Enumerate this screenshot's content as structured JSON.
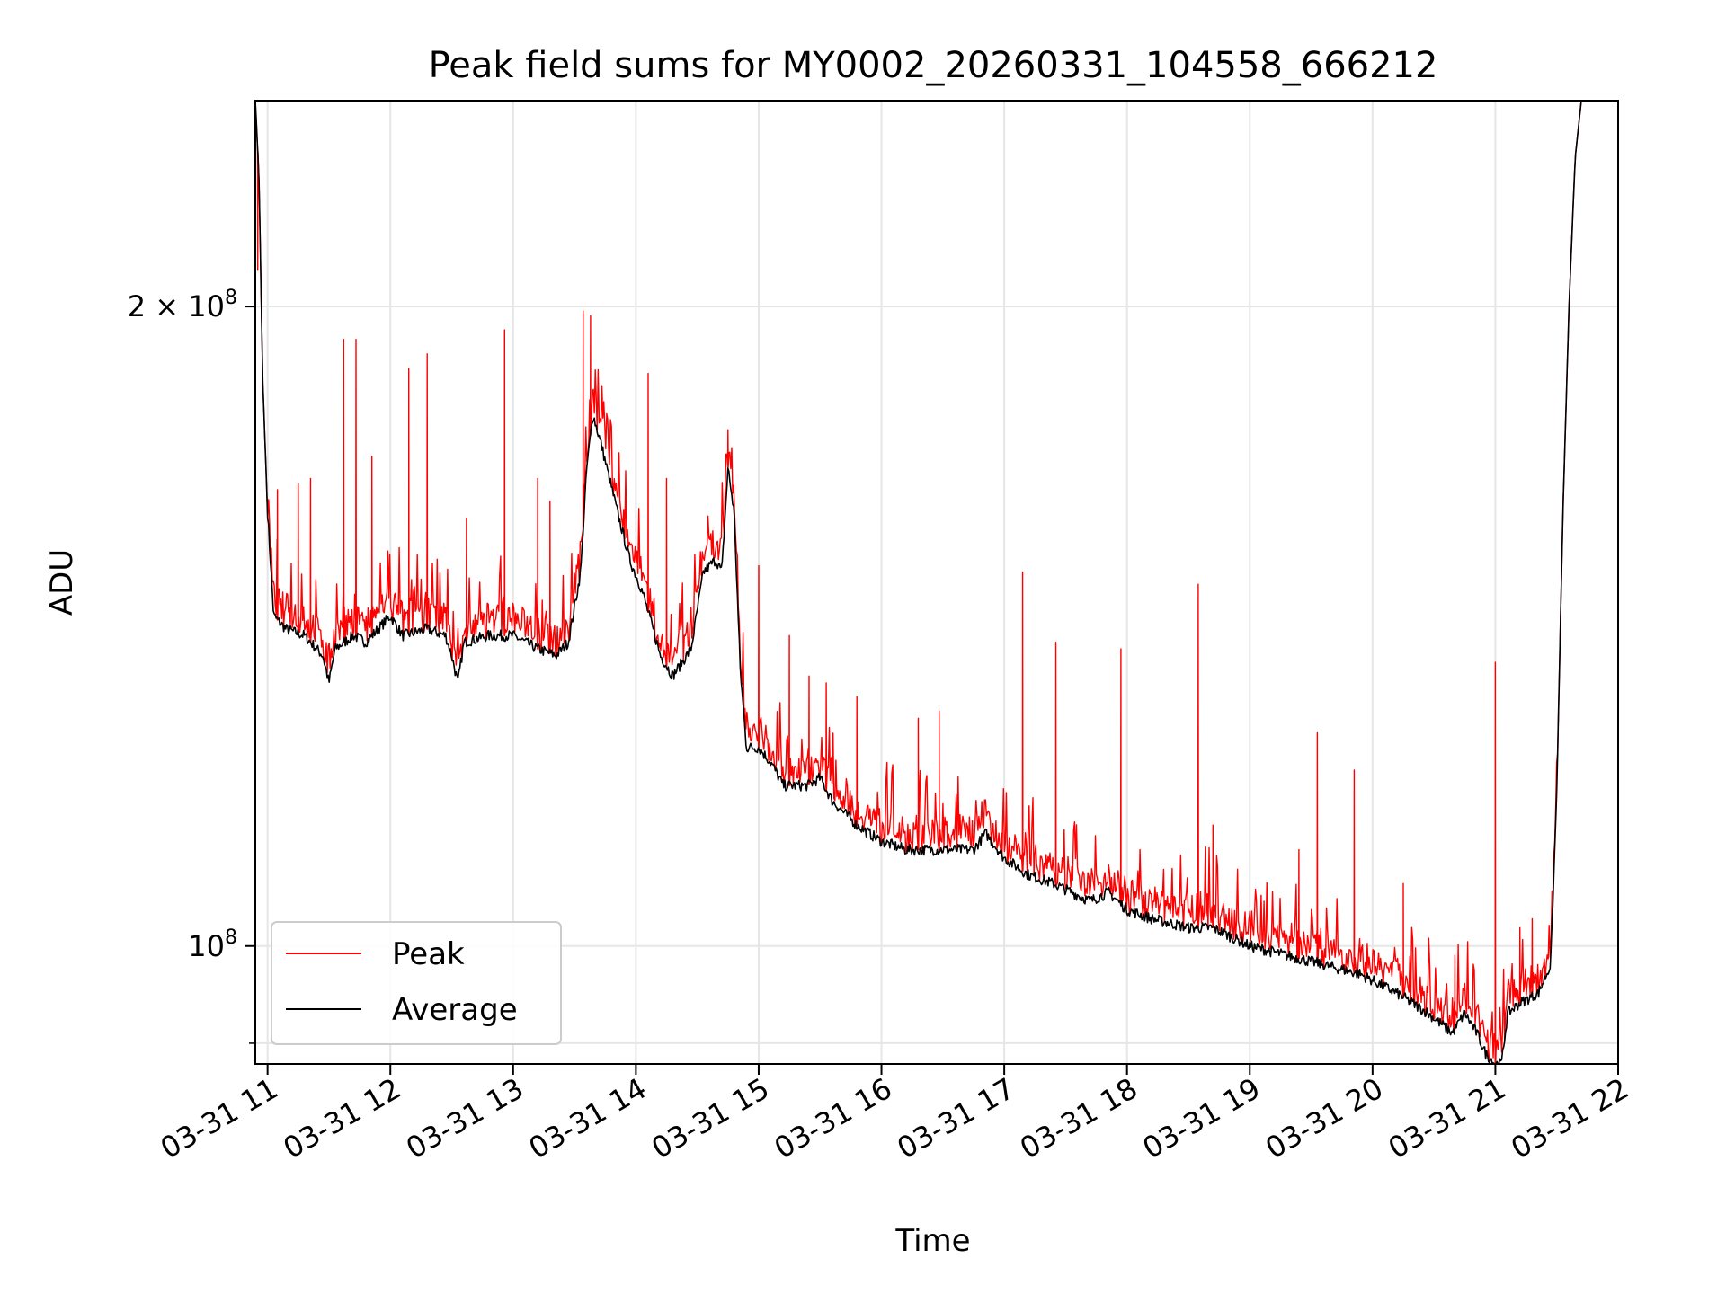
{
  "chart_data": {
    "type": "line",
    "title": "Peak field sums for MY0002_20260331_104558_666212",
    "xlabel": "Time",
    "ylabel": "ADU",
    "yscale": "log",
    "grid": true,
    "legend_position": "lower-left",
    "xlim_hours": [
      10.9,
      22.0
    ],
    "ylim": [
      88000000,
      250000000
    ],
    "x_ticks": [
      {
        "hour": 11,
        "label": "03-31 11"
      },
      {
        "hour": 12,
        "label": "03-31 12"
      },
      {
        "hour": 13,
        "label": "03-31 13"
      },
      {
        "hour": 14,
        "label": "03-31 14"
      },
      {
        "hour": 15,
        "label": "03-31 15"
      },
      {
        "hour": 16,
        "label": "03-31 16"
      },
      {
        "hour": 17,
        "label": "03-31 17"
      },
      {
        "hour": 18,
        "label": "03-31 18"
      },
      {
        "hour": 19,
        "label": "03-31 19"
      },
      {
        "hour": 20,
        "label": "03-31 20"
      },
      {
        "hour": 21,
        "label": "03-31 21"
      },
      {
        "hour": 22,
        "label": "03-31 22"
      }
    ],
    "y_major_ticks": [
      {
        "value": 100000000,
        "base": "10",
        "exp": "8"
      },
      {
        "value": 200000000,
        "base": "2 × 10",
        "exp": "8"
      }
    ],
    "y_minor_ticks": [
      90000000
    ],
    "series": [
      {
        "name": "Peak",
        "color": "#ff0000",
        "description": "baseline plus narrow upward spikes",
        "spikes": [
          {
            "hour": 10.92,
            "value": 208000000
          },
          {
            "hour": 11.08,
            "value": 164000000
          },
          {
            "hour": 11.25,
            "value": 165000000
          },
          {
            "hour": 11.35,
            "value": 166000000
          },
          {
            "hour": 11.62,
            "value": 193000000
          },
          {
            "hour": 11.72,
            "value": 193000000
          },
          {
            "hour": 11.85,
            "value": 170000000
          },
          {
            "hour": 12.15,
            "value": 187000000
          },
          {
            "hour": 12.3,
            "value": 190000000
          },
          {
            "hour": 12.62,
            "value": 159000000
          },
          {
            "hour": 12.93,
            "value": 195000000
          },
          {
            "hour": 13.2,
            "value": 166000000
          },
          {
            "hour": 13.3,
            "value": 162000000
          },
          {
            "hour": 13.57,
            "value": 199000000
          },
          {
            "hour": 13.63,
            "value": 198000000
          },
          {
            "hour": 14.1,
            "value": 186000000
          },
          {
            "hour": 14.25,
            "value": 166000000
          },
          {
            "hour": 14.75,
            "value": 175000000
          },
          {
            "hour": 15.0,
            "value": 151000000
          },
          {
            "hour": 15.25,
            "value": 140000000
          },
          {
            "hour": 15.41,
            "value": 134000000
          },
          {
            "hour": 15.55,
            "value": 133000000
          },
          {
            "hour": 15.8,
            "value": 131000000
          },
          {
            "hour": 16.3,
            "value": 128000000
          },
          {
            "hour": 16.47,
            "value": 129000000
          },
          {
            "hour": 16.98,
            "value": 113000000
          },
          {
            "hour": 17.15,
            "value": 150000000
          },
          {
            "hour": 17.42,
            "value": 139000000
          },
          {
            "hour": 17.95,
            "value": 138000000
          },
          {
            "hour": 18.15,
            "value": 106000000
          },
          {
            "hour": 18.58,
            "value": 148000000
          },
          {
            "hour": 18.7,
            "value": 114000000
          },
          {
            "hour": 19.4,
            "value": 111000000
          },
          {
            "hour": 19.55,
            "value": 126000000
          },
          {
            "hour": 19.85,
            "value": 121000000
          },
          {
            "hour": 20.25,
            "value": 107000000
          },
          {
            "hour": 20.67,
            "value": 99000000
          },
          {
            "hour": 21.0,
            "value": 136000000
          },
          {
            "hour": 21.2,
            "value": 102000000
          },
          {
            "hour": 21.3,
            "value": 103000000
          }
        ]
      },
      {
        "name": "Average",
        "color": "#000000",
        "description": "smooth baseline",
        "points": [
          [
            10.9,
            250000000
          ],
          [
            10.93,
            230000000
          ],
          [
            10.96,
            185000000
          ],
          [
            11.0,
            160000000
          ],
          [
            11.05,
            143000000
          ],
          [
            11.15,
            141000000
          ],
          [
            11.3,
            140000000
          ],
          [
            11.45,
            137000000
          ],
          [
            11.5,
            133000000
          ],
          [
            11.55,
            138000000
          ],
          [
            11.7,
            140000000
          ],
          [
            11.8,
            139000000
          ],
          [
            11.9,
            141000000
          ],
          [
            12.0,
            143000000
          ],
          [
            12.1,
            140000000
          ],
          [
            12.3,
            141000000
          ],
          [
            12.45,
            140000000
          ],
          [
            12.5,
            137000000
          ],
          [
            12.55,
            133000000
          ],
          [
            12.6,
            139000000
          ],
          [
            12.8,
            140000000
          ],
          [
            13.0,
            140000000
          ],
          [
            13.2,
            138000000
          ],
          [
            13.35,
            137000000
          ],
          [
            13.45,
            139000000
          ],
          [
            13.55,
            150000000
          ],
          [
            13.6,
            168000000
          ],
          [
            13.65,
            178000000
          ],
          [
            13.72,
            172000000
          ],
          [
            13.85,
            160000000
          ],
          [
            13.95,
            152000000
          ],
          [
            14.05,
            147000000
          ],
          [
            14.2,
            137000000
          ],
          [
            14.3,
            134000000
          ],
          [
            14.45,
            138000000
          ],
          [
            14.55,
            150000000
          ],
          [
            14.65,
            152000000
          ],
          [
            14.7,
            150000000
          ],
          [
            14.75,
            168000000
          ],
          [
            14.8,
            160000000
          ],
          [
            14.85,
            135000000
          ],
          [
            14.9,
            124000000
          ],
          [
            15.0,
            124000000
          ],
          [
            15.1,
            122000000
          ],
          [
            15.2,
            119000000
          ],
          [
            15.4,
            119000000
          ],
          [
            15.5,
            120000000
          ],
          [
            15.6,
            117000000
          ],
          [
            15.8,
            114000000
          ],
          [
            16.0,
            112000000
          ],
          [
            16.2,
            111000000
          ],
          [
            16.4,
            111000000
          ],
          [
            16.6,
            111000000
          ],
          [
            16.75,
            111000000
          ],
          [
            16.85,
            113000000
          ],
          [
            17.0,
            110000000
          ],
          [
            17.2,
            108000000
          ],
          [
            17.4,
            107000000
          ],
          [
            17.55,
            106000000
          ],
          [
            17.7,
            105000000
          ],
          [
            17.85,
            106000000
          ],
          [
            18.0,
            104000000
          ],
          [
            18.2,
            103000000
          ],
          [
            18.5,
            102000000
          ],
          [
            18.7,
            102000000
          ],
          [
            19.0,
            100000000
          ],
          [
            19.3,
            99000000
          ],
          [
            19.6,
            98000000
          ],
          [
            19.9,
            97000000
          ],
          [
            20.2,
            95000000
          ],
          [
            20.45,
            93000000
          ],
          [
            20.65,
            91000000
          ],
          [
            20.75,
            93000000
          ],
          [
            20.85,
            91000000
          ],
          [
            20.92,
            89000000
          ],
          [
            21.0,
            88000000
          ],
          [
            21.05,
            88000000
          ],
          [
            21.1,
            93000000
          ],
          [
            21.2,
            94000000
          ],
          [
            21.35,
            95000000
          ],
          [
            21.45,
            98000000
          ],
          [
            21.5,
            118000000
          ],
          [
            21.55,
            160000000
          ],
          [
            21.6,
            200000000
          ],
          [
            21.65,
            235000000
          ],
          [
            21.7,
            250000000
          ]
        ]
      }
    ]
  }
}
